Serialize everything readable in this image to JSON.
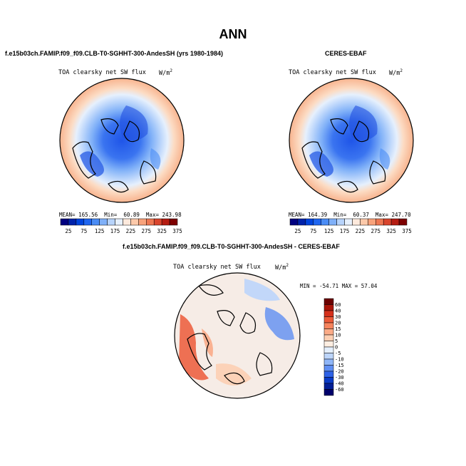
{
  "page_title": "ANN",
  "panels": [
    {
      "case_title": "f.e15b03ch.FAMIP.f09_f09.CLB-T0-SGHHT-300-AndesSH (yrs 1980-1984)",
      "variable_label": "TOA clearsky net SW flux",
      "units_label": "W/m",
      "units_exp": "2",
      "stats": {
        "mean_label": "MEAN=",
        "mean": "165.56",
        "min_label": "Min=",
        "min": "60.89",
        "max_label": "Max=",
        "max": "243.98"
      }
    },
    {
      "case_title": "CERES-EBAF",
      "variable_label": "TOA clearsky net SW flux",
      "units_label": "W/m",
      "units_exp": "2",
      "stats": {
        "mean_label": "MEAN=",
        "mean": "164.39",
        "min_label": "Min=",
        "min": "60.37",
        "max_label": "Max=",
        "max": "247.70"
      }
    }
  ],
  "diff_panel": {
    "case_title": "f.e15b03ch.FAMIP.f09_f09.CLB-T0-SGHHT-300-AndesSH - CERES-EBAF",
    "variable_label": "TOA clearsky net SW flux",
    "units_label": "W/m",
    "units_exp": "2",
    "stats_text": "MIN = -54.71 MAX = 57.04"
  },
  "colorbar_horizontal": {
    "tick_labels": [
      "25",
      "75",
      "125",
      "175",
      "225",
      "275",
      "325",
      "375"
    ],
    "colors": [
      "#00007f",
      "#0022aa",
      "#0044dd",
      "#1f66f0",
      "#4a8cf5",
      "#7fb0f8",
      "#b7d3fb",
      "#e6f0fd",
      "#fde9dc",
      "#fcc9aa",
      "#f8a37c",
      "#ee7752",
      "#d9452d",
      "#b51c12",
      "#7d0000"
    ]
  },
  "colorbar_vertical": {
    "tick_labels": [
      "60",
      "40",
      "30",
      "20",
      "15",
      "10",
      "5",
      "0",
      "-5",
      "-10",
      "-15",
      "-20",
      "-30",
      "-40",
      "-60"
    ],
    "colors": [
      "#6b0000",
      "#aa1408",
      "#d5301c",
      "#ec5a38",
      "#f6845d",
      "#fbab87",
      "#fdcfb3",
      "#fdeee2",
      "#e4effd",
      "#bcd5fb",
      "#8fb6f8",
      "#5f8ff3",
      "#2e62e6",
      "#0a3bc6",
      "#031f96",
      "#00006b"
    ]
  },
  "legend_labels": [
    "MEAN",
    "Min",
    "Max"
  ]
}
